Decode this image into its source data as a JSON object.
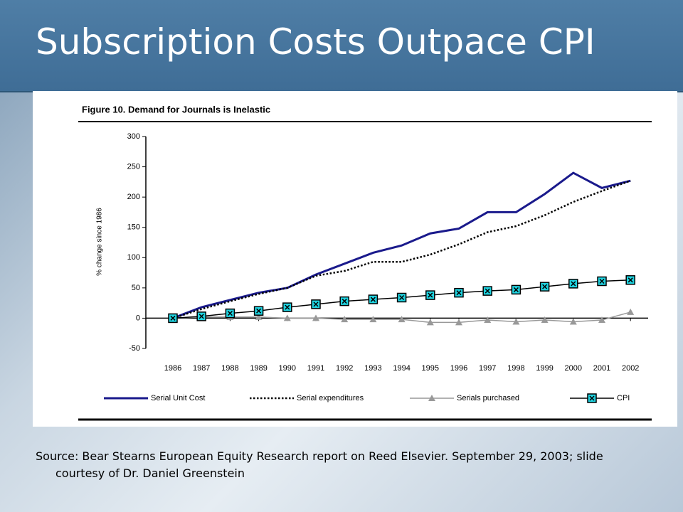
{
  "slide_title": "Subscription Costs Outpace CPI",
  "source": "Source: Bear Stearns European Equity Research report on Reed Elsevier. September 29, 2003; slide courtesy of Dr. Daniel Greenstein",
  "chart_data": {
    "type": "line",
    "title": "Figure 10. Demand for Journals is Inelastic",
    "y_label": "% change since 1986",
    "categories": [
      "1986",
      "1987",
      "1988",
      "1989",
      "1990",
      "1991",
      "1992",
      "1993",
      "1994",
      "1995",
      "1996",
      "1997",
      "1998",
      "1999",
      "2000",
      "2001",
      "2002"
    ],
    "series": [
      {
        "name": "Serial Unit Cost",
        "color": "#1a1a8c",
        "line_style": "solid",
        "marker": "none",
        "values": [
          0,
          18,
          30,
          42,
          50,
          72,
          90,
          108,
          120,
          140,
          148,
          175,
          175,
          205,
          240,
          215,
          227
        ]
      },
      {
        "name": "Serial expenditures",
        "color": "#000000",
        "line_style": "dotted",
        "marker": "none",
        "values": [
          0,
          15,
          28,
          40,
          50,
          70,
          78,
          93,
          93,
          105,
          122,
          142,
          152,
          170,
          192,
          210,
          227
        ]
      },
      {
        "name": "Serials purchased",
        "color": "#999999",
        "line_style": "solid",
        "marker": "triangle",
        "values": [
          0,
          2,
          2,
          2,
          0,
          0,
          -2,
          -2,
          -2,
          -7,
          -7,
          -3,
          -6,
          -3,
          -6,
          -3,
          10
        ]
      },
      {
        "name": "CPI",
        "color": "#000000",
        "line_style": "solid",
        "marker": "square-x",
        "values": [
          0,
          3,
          8,
          12,
          18,
          23,
          28,
          31,
          34,
          38,
          42,
          45,
          47,
          52,
          57,
          61,
          63
        ]
      }
    ],
    "ylim": [
      -50,
      300
    ],
    "yticks": [
      -50,
      0,
      50,
      100,
      150,
      200,
      250,
      300
    ],
    "legend": "bottom"
  }
}
